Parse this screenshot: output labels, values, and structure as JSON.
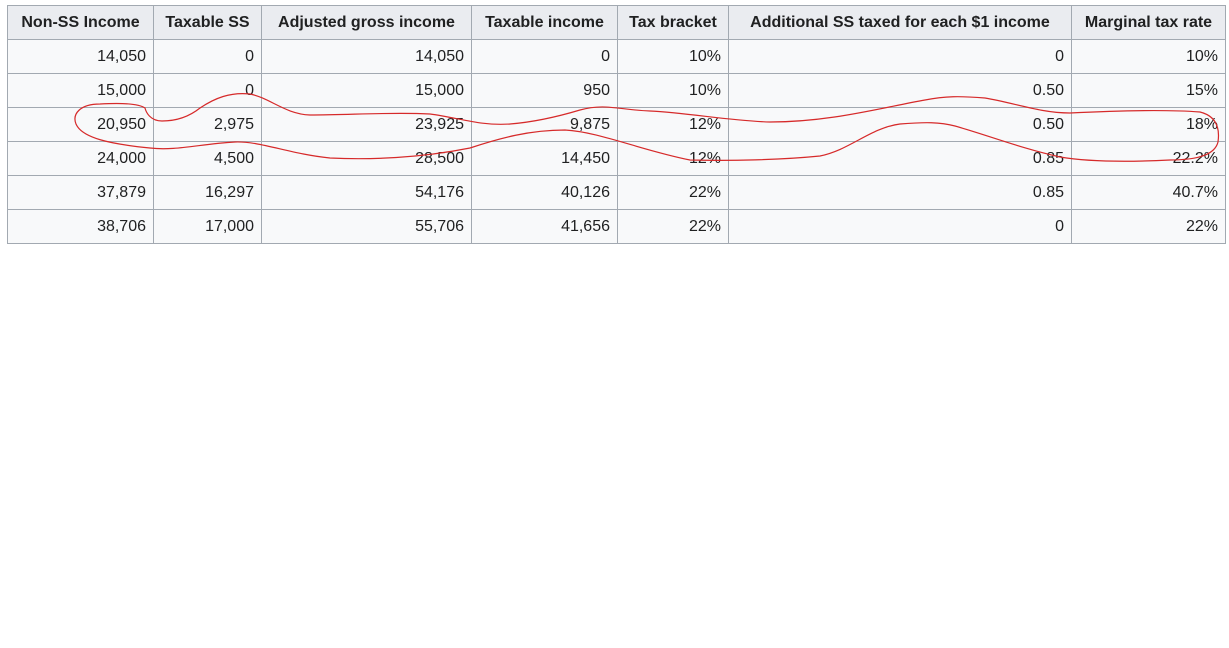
{
  "table": {
    "headers": [
      "Non-SS Income",
      "Taxable SS",
      "Adjusted gross income",
      "Taxable income",
      "Tax bracket",
      "Additional SS taxed for each $1 income",
      "Marginal tax rate"
    ],
    "rows": [
      [
        "14,050",
        "0",
        "14,050",
        "0",
        "10%",
        "0",
        "10%"
      ],
      [
        "15,000",
        "0",
        "15,000",
        "950",
        "10%",
        "0.50",
        "15%"
      ],
      [
        "20,950",
        "2,975",
        "23,925",
        "9,875",
        "12%",
        "0.50",
        "18%"
      ],
      [
        "24,000",
        "4,500",
        "28,500",
        "14,450",
        "12%",
        "0.85",
        "22.2%"
      ],
      [
        "37,879",
        "16,297",
        "54,176",
        "40,126",
        "22%",
        "0.85",
        "40.7%"
      ],
      [
        "38,706",
        "17,000",
        "55,706",
        "41,656",
        "22%",
        "0",
        "22%"
      ]
    ]
  },
  "annotation": {
    "ink_color": "#d62a2a"
  }
}
